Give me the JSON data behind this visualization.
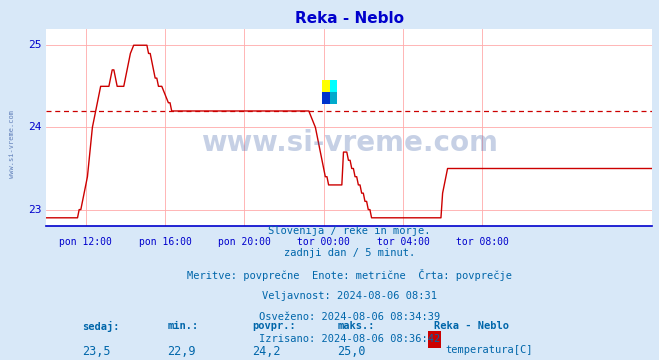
{
  "title": "Reka - Neblo",
  "title_color": "#0000cc",
  "bg_color": "#d8e8f8",
  "plot_bg_color": "#ffffff",
  "line_color": "#cc0000",
  "avg_line_color": "#cc0000",
  "avg_line_value": 24.2,
  "y_min": 22.8,
  "y_max": 25.2,
  "y_ticks": [
    23,
    24,
    25
  ],
  "x_tick_positions_used": [
    24,
    72,
    120,
    168,
    216,
    264
  ],
  "x_tick_labels": [
    "pon 12:00",
    "pon 16:00",
    "pon 20:00",
    "tor 00:00",
    "tor 04:00",
    "tor 08:00"
  ],
  "watermark": "www.si-vreme.com",
  "watermark_color": "#4466aa",
  "footer_lines": [
    "Slovenija / reke in morje.",
    "zadnji dan / 5 minut.",
    "Meritve: povprečne  Enote: metrične  Črta: povprečje",
    "Veljavnost: 2024-08-06 08:31",
    "Osveženo: 2024-08-06 08:34:39",
    "Izrisano: 2024-08-06 08:36:42"
  ],
  "footer_color": "#0066aa",
  "stats_labels": [
    "sedaj:",
    "min.:",
    "povpr.:",
    "maks.:"
  ],
  "stats_values": [
    "23,5",
    "22,9",
    "24,2",
    "25,0"
  ],
  "legend_station": "Reka - Neblo",
  "legend_label": "temperatura[C]",
  "legend_color": "#cc0000",
  "grid_color": "#ffaaaa",
  "axis_color": "#0000cc",
  "temperature_data": [
    22.9,
    22.9,
    22.9,
    22.9,
    22.9,
    22.9,
    22.9,
    22.9,
    22.9,
    22.9,
    22.9,
    22.9,
    22.9,
    22.9,
    22.9,
    22.9,
    22.9,
    22.9,
    22.9,
    22.9,
    23.0,
    23.0,
    23.1,
    23.2,
    23.3,
    23.4,
    23.6,
    23.8,
    24.0,
    24.1,
    24.2,
    24.3,
    24.4,
    24.5,
    24.5,
    24.5,
    24.5,
    24.5,
    24.5,
    24.6,
    24.7,
    24.7,
    24.6,
    24.5,
    24.5,
    24.5,
    24.5,
    24.5,
    24.6,
    24.7,
    24.8,
    24.9,
    24.95,
    25.0,
    25.0,
    25.0,
    25.0,
    25.0,
    25.0,
    25.0,
    25.0,
    25.0,
    24.9,
    24.9,
    24.8,
    24.7,
    24.6,
    24.6,
    24.5,
    24.5,
    24.5,
    24.45,
    24.4,
    24.35,
    24.3,
    24.3,
    24.2,
    24.2,
    24.2,
    24.2,
    24.2,
    24.2,
    24.2,
    24.2,
    24.2,
    24.2,
    24.2,
    24.2,
    24.2,
    24.2,
    24.2,
    24.2,
    24.2,
    24.2,
    24.2,
    24.2,
    24.2,
    24.2,
    24.2,
    24.2,
    24.2,
    24.2,
    24.2,
    24.2,
    24.2,
    24.2,
    24.2,
    24.2,
    24.2,
    24.2,
    24.2,
    24.2,
    24.2,
    24.2,
    24.2,
    24.2,
    24.2,
    24.2,
    24.2,
    24.2,
    24.2,
    24.2,
    24.2,
    24.2,
    24.2,
    24.2,
    24.2,
    24.2,
    24.2,
    24.2,
    24.2,
    24.2,
    24.2,
    24.2,
    24.2,
    24.2,
    24.2,
    24.2,
    24.2,
    24.2,
    24.2,
    24.2,
    24.2,
    24.2,
    24.2,
    24.2,
    24.2,
    24.2,
    24.2,
    24.2,
    24.2,
    24.2,
    24.2,
    24.2,
    24.2,
    24.2,
    24.2,
    24.2,
    24.2,
    24.2,
    24.15,
    24.1,
    24.05,
    24.0,
    23.9,
    23.8,
    23.7,
    23.6,
    23.5,
    23.4,
    23.4,
    23.3,
    23.3,
    23.3,
    23.3,
    23.3,
    23.3,
    23.3,
    23.3,
    23.3,
    23.7,
    23.7,
    23.7,
    23.6,
    23.6,
    23.5,
    23.5,
    23.4,
    23.4,
    23.3,
    23.3,
    23.2,
    23.2,
    23.1,
    23.1,
    23.0,
    23.0,
    22.9,
    22.9,
    22.9,
    22.9,
    22.9,
    22.9,
    22.9,
    22.9,
    22.9,
    22.9,
    22.9,
    22.9,
    22.9,
    22.9,
    22.9,
    22.9,
    22.9,
    22.9,
    22.9,
    22.9,
    22.9,
    22.9,
    22.9,
    22.9,
    22.9,
    22.9,
    22.9,
    22.9,
    22.9,
    22.9,
    22.9,
    22.9,
    22.9,
    22.9,
    22.9,
    22.9,
    22.9,
    22.9,
    22.9,
    22.9,
    22.9,
    22.9,
    22.9,
    23.2,
    23.3,
    23.4,
    23.5,
    23.5,
    23.5,
    23.5,
    23.5,
    23.5,
    23.5,
    23.5,
    23.5,
    23.5,
    23.5,
    23.5,
    23.5,
    23.5,
    23.5,
    23.5,
    23.5,
    23.5,
    23.5,
    23.5,
    23.5,
    23.5,
    23.5,
    23.5,
    23.5,
    23.5,
    23.5,
    23.5,
    23.5,
    23.5,
    23.5,
    23.5,
    23.5,
    23.5,
    23.5,
    23.5,
    23.5,
    23.5,
    23.5,
    23.5,
    23.5,
    23.5,
    23.5,
    23.5,
    23.5,
    23.5,
    23.5,
    23.5,
    23.5,
    23.5,
    23.5,
    23.5,
    23.5,
    23.5,
    23.5,
    23.5,
    23.5,
    23.5,
    23.5,
    23.5,
    23.5,
    23.5,
    23.5,
    23.5,
    23.5,
    23.5,
    23.5,
    23.5,
    23.5,
    23.5,
    23.5,
    23.5,
    23.5,
    23.5,
    23.5,
    23.5,
    23.5,
    23.5,
    23.5,
    23.5,
    23.5,
    23.5,
    23.5,
    23.5,
    23.5,
    23.5,
    23.5,
    23.5,
    23.5,
    23.5,
    23.5,
    23.5,
    23.5,
    23.5,
    23.5,
    23.5,
    23.5,
    23.5,
    23.5,
    23.5,
    23.5,
    23.5,
    23.5,
    23.5,
    23.5,
    23.5,
    23.5,
    23.5,
    23.5,
    23.5,
    23.5,
    23.5,
    23.5,
    23.5,
    23.5,
    23.5,
    23.5,
    23.5,
    23.5,
    23.5,
    23.5,
    23.5,
    23.5,
    23.5,
    23.5
  ]
}
